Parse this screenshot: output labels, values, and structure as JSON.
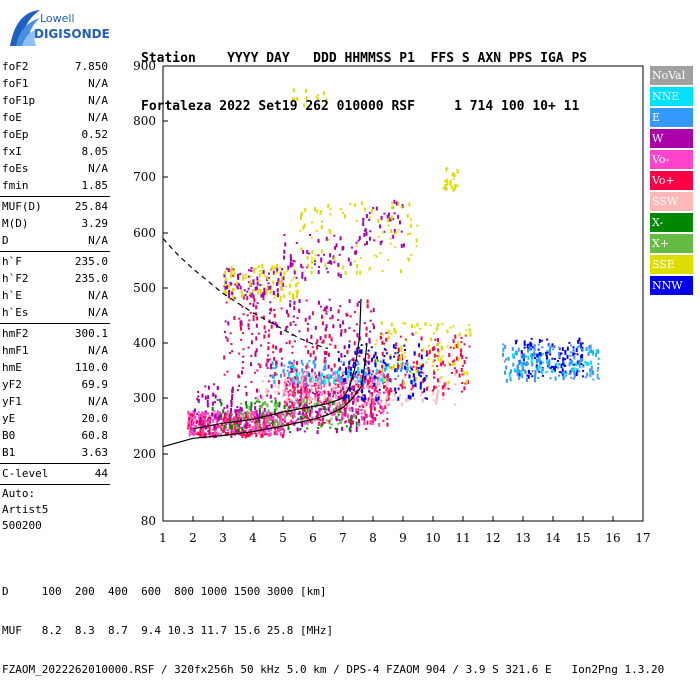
{
  "logo": {
    "line1": "Lowell",
    "line2": "DIGISONDE"
  },
  "header": {
    "row1": "Station    YYYY DAY   DDD HHMMSS P1  FFS S AXN PPS IGA PS",
    "row2": "Fortaleza 2022 Set19 262 010000 RSF     1 714 100 10+ 11"
  },
  "params": {
    "group1": [
      {
        "name": "foF2",
        "value": "7.850"
      },
      {
        "name": "foF1",
        "value": "N/A"
      },
      {
        "name": "foF1p",
        "value": "N/A"
      },
      {
        "name": "foE",
        "value": "N/A"
      },
      {
        "name": "foEp",
        "value": "0.52"
      },
      {
        "name": "fxI",
        "value": "8.05"
      },
      {
        "name": "foEs",
        "value": "N/A"
      },
      {
        "name": "fmin",
        "value": "1.85"
      }
    ],
    "group2": [
      {
        "name": "MUF(D)",
        "value": "25.84"
      },
      {
        "name": "M(D)",
        "value": "3.29"
      },
      {
        "name": "D",
        "value": "N/A"
      }
    ],
    "group3": [
      {
        "name": "h`F",
        "value": "235.0"
      },
      {
        "name": "h`F2",
        "value": "235.0"
      },
      {
        "name": "h`E",
        "value": "N/A"
      },
      {
        "name": "h`Es",
        "value": "N/A"
      }
    ],
    "group4": [
      {
        "name": "hmF2",
        "value": "300.1"
      },
      {
        "name": "hmF1",
        "value": "N/A"
      },
      {
        "name": "hmE",
        "value": "110.0"
      },
      {
        "name": "yF2",
        "value": "69.9"
      },
      {
        "name": "yF1",
        "value": "N/A"
      },
      {
        "name": "yE",
        "value": "20.0"
      },
      {
        "name": "B0",
        "value": "60.8"
      },
      {
        "name": "B1",
        "value": "3.63"
      }
    ],
    "clevel": {
      "name": "C-level",
      "value": "44"
    },
    "auto": {
      "line1": "Auto:",
      "line2": "Artist5",
      "line3": "500200"
    }
  },
  "legend": [
    {
      "label": "NoVal",
      "color": "#a0a0a0"
    },
    {
      "label": "NNE",
      "color": "#00e0ff"
    },
    {
      "label": "E",
      "color": "#3399ff"
    },
    {
      "label": "W",
      "color": "#aa00aa"
    },
    {
      "label": "Vo-",
      "color": "#ff44cc"
    },
    {
      "label": "Vo+",
      "color": "#ff0044"
    },
    {
      "label": "SSW",
      "color": "#ffb8b8"
    },
    {
      "label": "X-",
      "color": "#008800"
    },
    {
      "label": "X+",
      "color": "#66bb44"
    },
    {
      "label": "SSE",
      "color": "#dddd00"
    },
    {
      "label": "NNW",
      "color": "#0000ee"
    }
  ],
  "footer": {
    "d_row": "D     100  200  400  600  800 1000 1500 3000 [km]",
    "muf_row": "MUF   8.2  8.3  8.7  9.4 10.3 11.7 15.6 25.8 [MHz]",
    "file_row": "FZAOM_2022262010000.RSF / 320fx256h 50 kHz 5.0 km / DPS-4 FZAOM 904 / 3.9 S 321.6 E   Ion2Png 1.3.20"
  },
  "chart_data": {
    "type": "scatter",
    "xlim": [
      1,
      17
    ],
    "ylim": [
      80,
      900
    ],
    "xticks": [
      "1",
      "2",
      "3",
      "4",
      "5",
      "6",
      "7",
      "8",
      "9",
      "10",
      "11",
      "12",
      "13",
      "14",
      "15",
      "16",
      "17"
    ],
    "yticks": [
      "80",
      "200",
      "300",
      "400",
      "500",
      "600",
      "700",
      "800",
      "900"
    ],
    "grid": false,
    "curves": {
      "dashed": {
        "x": [
          1.0,
          1.5,
          2.0,
          3.0,
          4.0,
          5.0,
          5.5,
          6.0,
          6.5
        ],
        "y": [
          590,
          560,
          535,
          490,
          455,
          425,
          410,
          398,
          390
        ]
      },
      "profile": {
        "x": [
          1.0,
          2.0,
          3.0,
          4.0,
          5.0,
          6.0,
          6.5,
          7.0,
          7.3,
          7.6,
          7.7,
          7.8
        ],
        "y": [
          213,
          228,
          233,
          240,
          250,
          262,
          270,
          283,
          298,
          320,
          350,
          400
        ]
      },
      "trace": {
        "x": [
          2.0,
          3.0,
          4.0,
          5.0,
          6.0,
          6.5,
          7.0,
          7.2,
          7.4,
          7.55,
          7.6
        ],
        "y": [
          245,
          255,
          262,
          275,
          285,
          290,
          300,
          318,
          355,
          410,
          480
        ]
      }
    },
    "clusters": [
      {
        "mode": "W",
        "x": [
          3.0,
          5.0
        ],
        "y": [
          485,
          540
        ],
        "n": 90
      },
      {
        "mode": "W",
        "x": [
          5.0,
          7.5
        ],
        "y": [
          520,
          600
        ],
        "n": 60
      },
      {
        "mode": "W",
        "x": [
          7.5,
          9.0
        ],
        "y": [
          580,
          660
        ],
        "n": 40
      },
      {
        "mode": "SSE",
        "x": [
          3.0,
          5.5
        ],
        "y": [
          480,
          545
        ],
        "n": 90
      },
      {
        "mode": "SSE",
        "x": [
          5.5,
          9.5
        ],
        "y": [
          530,
          660
        ],
        "n": 90
      },
      {
        "mode": "SSE",
        "x": [
          10.3,
          10.8
        ],
        "y": [
          680,
          720
        ],
        "n": 25
      },
      {
        "mode": "SSE",
        "x": [
          5.3,
          6.5
        ],
        "y": [
          830,
          860
        ],
        "n": 12
      },
      {
        "mode": "Vo+",
        "x": [
          1.8,
          5.0
        ],
        "y": [
          235,
          275
        ],
        "n": 260
      },
      {
        "mode": "Vo-",
        "x": [
          1.8,
          5.0
        ],
        "y": [
          235,
          280
        ],
        "n": 220
      },
      {
        "mode": "Vo+",
        "x": [
          5.0,
          8.5
        ],
        "y": [
          255,
          345
        ],
        "n": 260
      },
      {
        "mode": "Vo-",
        "x": [
          5.0,
          8.5
        ],
        "y": [
          255,
          350
        ],
        "n": 200
      },
      {
        "mode": "W",
        "x": [
          2.0,
          8.0
        ],
        "y": [
          240,
          330
        ],
        "n": 200
      },
      {
        "mode": "E",
        "x": [
          4.5,
          9.5
        ],
        "y": [
          330,
          370
        ],
        "n": 120
      },
      {
        "mode": "NNE",
        "x": [
          5.0,
          8.5
        ],
        "y": [
          330,
          360
        ],
        "n": 60
      },
      {
        "mode": "SSW",
        "x": [
          4.0,
          10.8
        ],
        "y": [
          290,
          345
        ],
        "n": 160
      },
      {
        "mode": "Vo+",
        "x": [
          8.0,
          11.2
        ],
        "y": [
          310,
          420
        ],
        "n": 120
      },
      {
        "mode": "NNW",
        "x": [
          6.8,
          9.8
        ],
        "y": [
          300,
          400
        ],
        "n": 120
      },
      {
        "mode": "SSE",
        "x": [
          8.0,
          11.3
        ],
        "y": [
          330,
          440
        ],
        "n": 90
      },
      {
        "mode": "X-",
        "x": [
          2.5,
          7.5
        ],
        "y": [
          245,
          300
        ],
        "n": 70
      },
      {
        "mode": "X+",
        "x": [
          3.0,
          7.0
        ],
        "y": [
          250,
          300
        ],
        "n": 60
      },
      {
        "mode": "Vo+",
        "x": [
          3.0,
          8.0
        ],
        "y": [
          330,
          490
        ],
        "n": 150
      },
      {
        "mode": "W",
        "x": [
          3.0,
          8.0
        ],
        "y": [
          340,
          480
        ],
        "n": 120
      },
      {
        "mode": "NNW",
        "x": [
          12.7,
          15.0
        ],
        "y": [
          340,
          410
        ],
        "n": 120
      },
      {
        "mode": "E",
        "x": [
          12.3,
          15.5
        ],
        "y": [
          335,
          400
        ],
        "n": 150
      },
      {
        "mode": "NNE",
        "x": [
          12.5,
          15.5
        ],
        "y": [
          345,
          390
        ],
        "n": 40
      }
    ]
  }
}
